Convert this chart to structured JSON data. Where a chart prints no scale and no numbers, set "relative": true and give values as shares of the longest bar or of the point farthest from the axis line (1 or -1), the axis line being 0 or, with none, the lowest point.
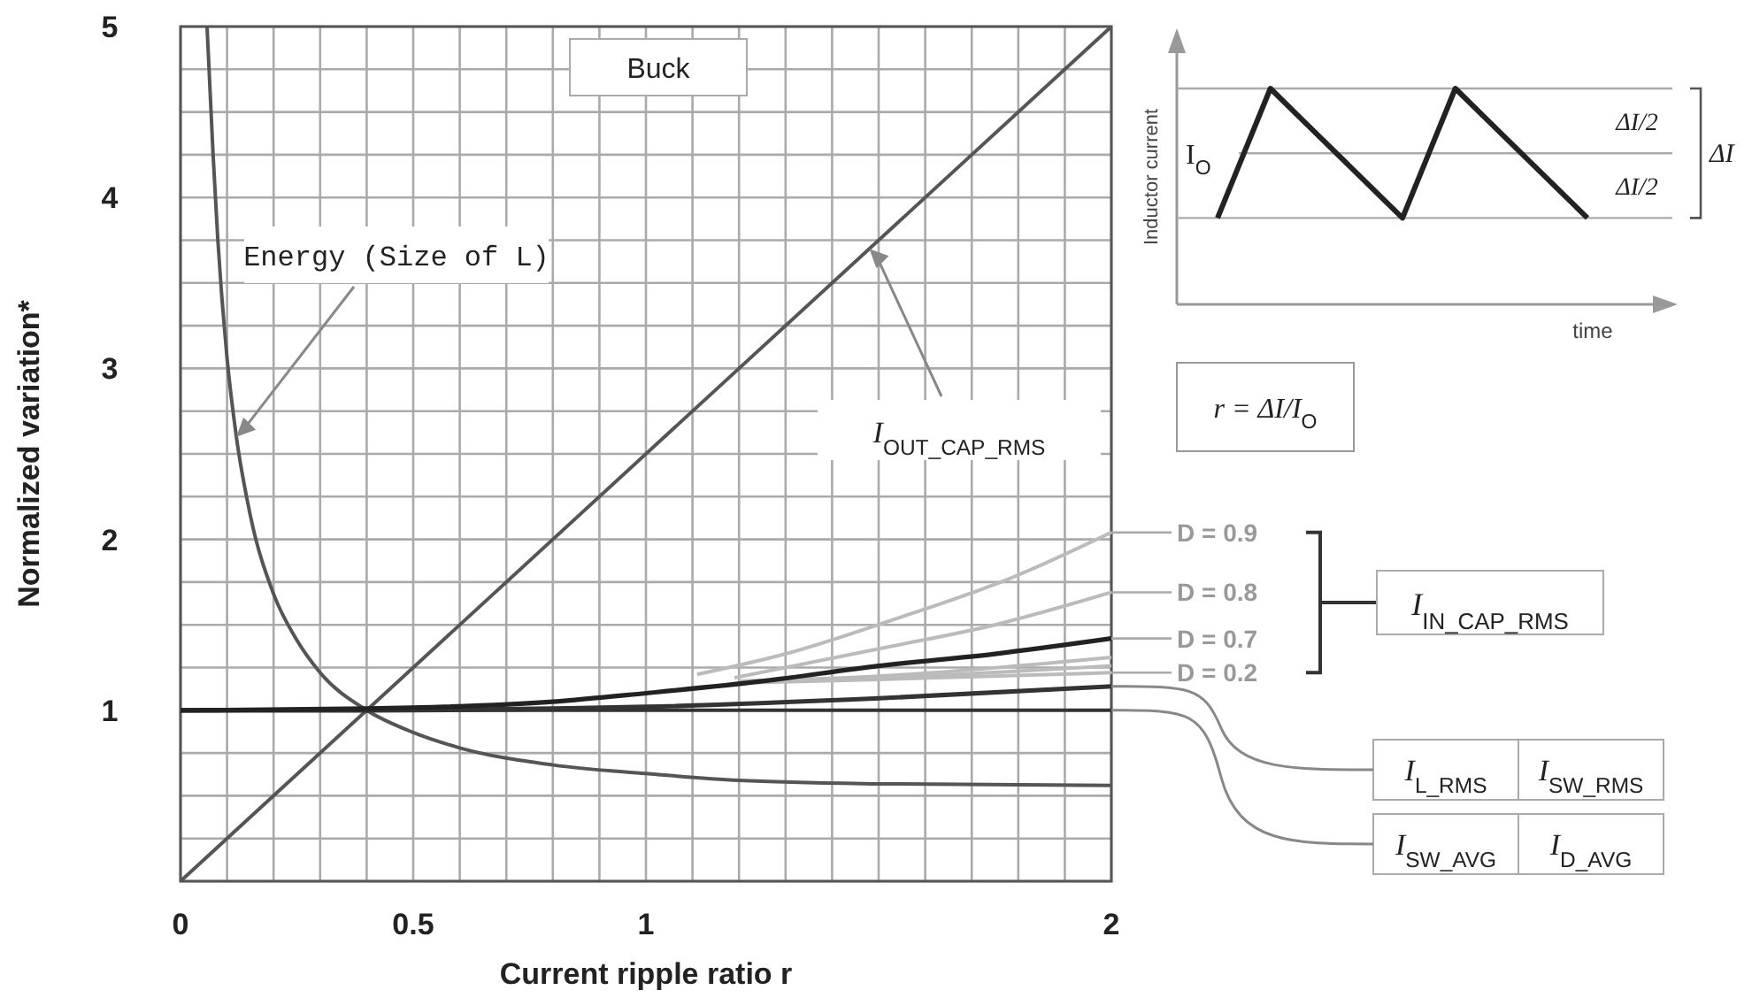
{
  "chart_data": [
    {
      "type": "line",
      "xlabel": "Current ripple ratio r",
      "ylabel": "Normalized variation*",
      "xlim": [
        0,
        2
      ],
      "ylim": [
        0,
        5
      ],
      "xticks": [
        0,
        {
          "value": 0.1,
          "label": null
        },
        {
          "value": 0.2,
          "label": null
        },
        {
          "value": 0.3,
          "label": null
        },
        {
          "value": 0.4,
          "label": null
        },
        {
          "value": 0.5,
          "label": "0.5"
        },
        {
          "value": 0.6,
          "label": null
        },
        {
          "value": 0.7,
          "label": null
        },
        {
          "value": 0.8,
          "label": null
        },
        {
          "value": 0.9,
          "label": null
        },
        {
          "value": 1,
          "label": "1"
        },
        {
          "value": 1.1,
          "label": null
        },
        {
          "value": 1.2,
          "label": null
        },
        {
          "value": 1.3,
          "label": null
        },
        {
          "value": 1.4,
          "label": null
        },
        {
          "value": 1.5,
          "label": null
        },
        {
          "value": 1.6,
          "label": null
        },
        {
          "value": 1.7,
          "label": null
        },
        {
          "value": 1.8,
          "label": null
        },
        {
          "value": 1.9,
          "label": null
        },
        {
          "value": 2,
          "label": "2"
        }
      ],
      "yticks": [
        {
          "value": 0,
          "label": null
        },
        {
          "value": 0.25,
          "label": null
        },
        {
          "value": 0.5,
          "label": null
        },
        {
          "value": 0.75,
          "label": null
        },
        1,
        {
          "value": 1.25,
          "label": null
        },
        {
          "value": 1.5,
          "label": null
        },
        {
          "value": 1.75,
          "label": null
        },
        2,
        {
          "value": 2.25,
          "label": null
        },
        {
          "value": 2.5,
          "label": null
        },
        {
          "value": 2.75,
          "label": null
        },
        3,
        {
          "value": 3.25,
          "label": null
        },
        {
          "value": 3.5,
          "label": null
        },
        {
          "value": 3.75,
          "label": null
        },
        4,
        {
          "value": 4.25,
          "label": null
        },
        {
          "value": 4.5,
          "label": null
        },
        {
          "value": 4.75,
          "label": null
        },
        5
      ],
      "grid": true,
      "marker": "none",
      "series": [
        {
          "color": "#555555",
          "x": [
            0.057,
            0.07,
            0.08,
            0.1,
            0.12,
            0.15,
            0.2,
            0.25,
            0.3,
            0.4,
            0.5,
            0.6,
            0.8,
            1.0,
            1.2,
            1.5,
            2
          ],
          "values": [
            5.0,
            4.25,
            3.76,
            3.06,
            2.6,
            2.14,
            1.68,
            1.41,
            1.22,
            1.0,
            0.87,
            0.78,
            0.68,
            0.63,
            0.59,
            0.57,
            0.56
          ]
        },
        {
          "color": "#555555",
          "x": [
            0,
            2
          ],
          "values": [
            0,
            5
          ]
        },
        {
          "color": "#333333",
          "x": [
            0,
            2
          ],
          "values": [
            1,
            1
          ]
        },
        {
          "color": "#333333",
          "x": [
            0,
            0.4,
            1,
            1.5,
            2
          ],
          "values": [
            1,
            1,
            1.02,
            1.07,
            1.14
          ]
        },
        {
          "color": "#bbbbbb",
          "x": [
            1.2,
            1.5,
            2
          ],
          "values": [
            1.17,
            1.2,
            1.31
          ]
        },
        {
          "color": "#bbbbbb",
          "x": [
            1.2,
            1.5,
            2
          ],
          "values": [
            1.17,
            1.19,
            1.26
          ]
        },
        {
          "name": "D = 0.2",
          "color": "#bbbbbb",
          "x": [
            1.2,
            1.5,
            2
          ],
          "values": [
            1.16,
            1.18,
            1.22
          ]
        },
        {
          "name": "D = 0.8",
          "color": "#bbbbbb",
          "x": [
            1.19,
            1.52,
            1.75,
            2
          ],
          "values": [
            1.19,
            1.37,
            1.5,
            1.69
          ]
        },
        {
          "name": "D = 0.9",
          "color": "#bbbbbb",
          "x": [
            1.11,
            1.3,
            1.52,
            1.79,
            2
          ],
          "values": [
            1.21,
            1.33,
            1.52,
            1.78,
            2.04
          ]
        },
        {
          "name": "D = 0.7",
          "color": "#222222",
          "x": [
            0,
            0.4,
            0.8,
            1.0,
            1.25,
            1.5,
            1.75,
            2
          ],
          "values": [
            1,
            1.01,
            1.05,
            1.1,
            1.17,
            1.26,
            1.33,
            1.42
          ]
        }
      ],
      "annotations": [
        "Buck",
        "I$_{IN_CAP_RMS}$",
        "I$_{SW_RMS}$",
        "I$_{D_AVG}$",
        {
          "text": "Energy (Size of L)",
          "x": 0.12,
          "y": 2.6
        },
        {
          "text": "I$_{OUT_CAP_RMS}$",
          "x": 1.48,
          "y": 3.7
        },
        {
          "text": "I$_{L_RMS}$",
          "x": 2,
          "y": 1.14
        },
        {
          "text": "I$_{SW_AVG}$",
          "x": 2,
          "y": 1
        }
      ]
    },
    {
      "type": "line",
      "xlabel": "time",
      "ylabel": "Inductor current",
      "relative": true,
      "categories": [
        null,
        null,
        null,
        null,
        null,
        null,
        null,
        null,
        null,
        null,
        null,
        null,
        null,
        null,
        null
      ],
      "series": [
        {
          "color": "#222222",
          "values": [
            0.4,
            0.7,
            1.0,
            0.88,
            0.76,
            0.64,
            0.52,
            0.4,
            0.7,
            1.0,
            0.88,
            0.76,
            0.64,
            0.52,
            0.4
          ]
        }
      ],
      "ref_lines": [
        {
          "axis": "y",
          "value": 1.0,
          "label": null
        },
        {
          "axis": "y",
          "value": 0.7,
          "label": "I$_{O}$"
        },
        {
          "axis": "y",
          "value": 0.4,
          "label": null
        }
      ],
      "annotations": [
        "ΔI/2",
        "ΔI/2",
        "ΔI",
        "r = ΔI/I$_{O}$"
      ]
    }
  ]
}
